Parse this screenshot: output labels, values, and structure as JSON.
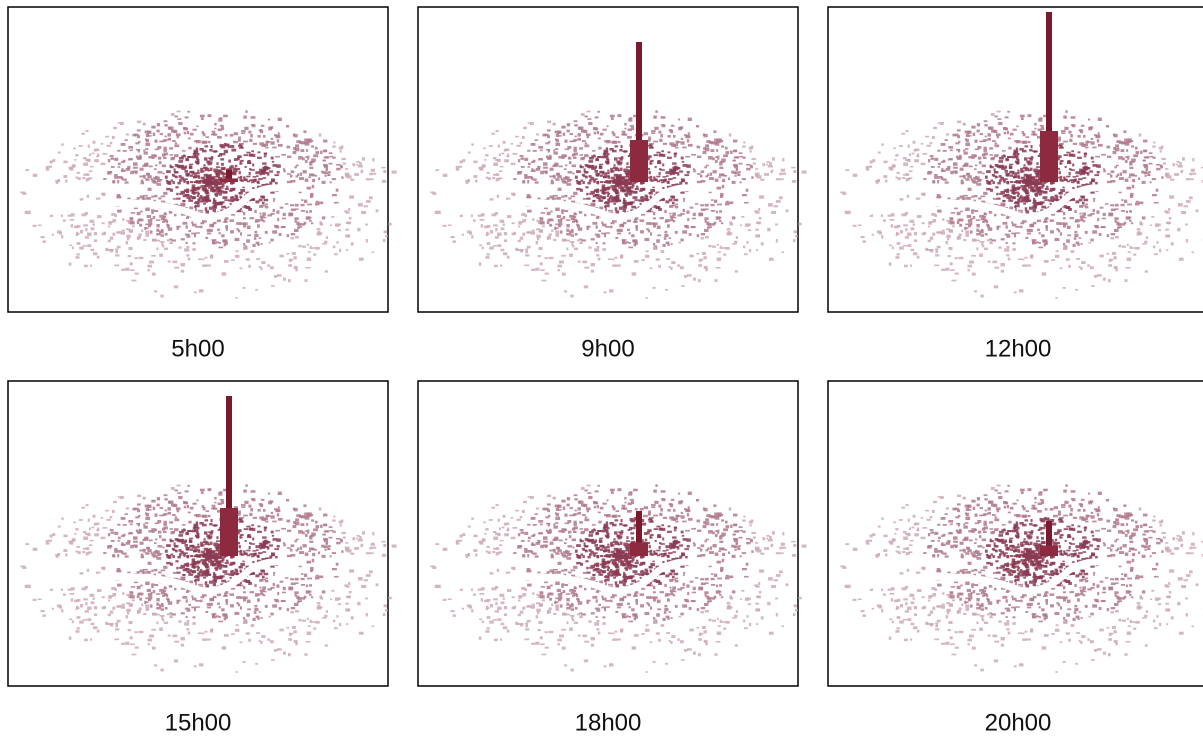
{
  "panels": [
    {
      "label": "5h00"
    },
    {
      "label": "9h00"
    },
    {
      "label": "12h00"
    },
    {
      "label": "15h00"
    },
    {
      "label": "18h00"
    },
    {
      "label": "20h00"
    }
  ]
}
